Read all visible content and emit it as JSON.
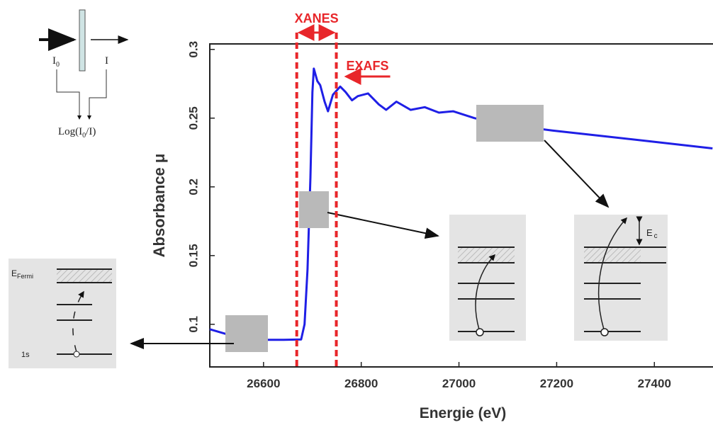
{
  "chart_data": {
    "type": "line",
    "x_label": "Energie (eV)",
    "y_label": "Absorbance μ",
    "x": [
      26490,
      26539,
      26600,
      26641,
      26677,
      26684,
      26690,
      26696,
      26700,
      26703,
      26710,
      26716,
      26725,
      26732,
      26742,
      26757,
      26768,
      26781,
      26793,
      26814,
      26836,
      26851,
      26872,
      26901,
      26930,
      26959,
      26988,
      27032,
      27104,
      27191,
      27293,
      27394,
      27519
    ],
    "values": [
      0.0964,
      0.0913,
      0.0887,
      0.0887,
      0.089,
      0.1,
      0.14,
      0.207,
      0.269,
      0.286,
      0.277,
      0.274,
      0.262,
      0.255,
      0.267,
      0.273,
      0.269,
      0.263,
      0.266,
      0.268,
      0.26,
      0.256,
      0.262,
      0.256,
      0.258,
      0.254,
      0.255,
      0.25,
      0.245,
      0.241,
      0.237,
      0.233,
      0.228
    ],
    "color": "#1f1fe6",
    "xlim": [
      26490,
      27520
    ],
    "ylim": [
      0.069,
      0.304
    ],
    "xticks": [
      26600,
      26800,
      27000,
      27200,
      27400
    ],
    "yticks": [
      0.1,
      0.15,
      0.2,
      0.25,
      0.3
    ],
    "reference_lines": {
      "values": [
        26668,
        26749
      ],
      "color": "#e8262a"
    },
    "annotations": [
      "XANES",
      "EXAFS"
    ]
  },
  "beam_diagram": {
    "incident": [
      "I",
      "0"
    ],
    "transmitted": "I",
    "formula": [
      "Log(I",
      "0",
      "/I)"
    ]
  },
  "level_diagram": {
    "fermi": [
      "E",
      "Fermi"
    ],
    "core": "1s",
    "kinetic": [
      "E",
      "c"
    ]
  }
}
